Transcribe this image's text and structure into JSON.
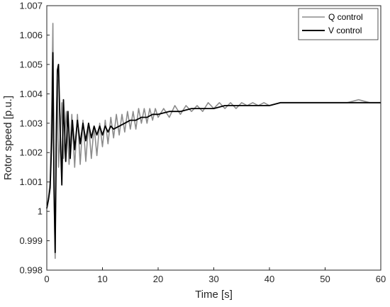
{
  "chart_data": {
    "type": "line",
    "title": "",
    "xlabel": "Time [s]",
    "ylabel": "Rotor speed [p.u.]",
    "xlim": [
      0,
      60
    ],
    "ylim": [
      0.998,
      1.007
    ],
    "xticks": [
      0,
      10,
      20,
      30,
      40,
      50,
      60
    ],
    "xtick_labels": [
      "0",
      "10",
      "20",
      "30",
      "40",
      "50",
      "60"
    ],
    "yticks": [
      0.998,
      0.999,
      1.0,
      1.001,
      1.002,
      1.003,
      1.004,
      1.005,
      1.006,
      1.007
    ],
    "ytick_labels": [
      "0.998",
      "0.999",
      "1",
      "1.001",
      "1.002",
      "1.003",
      "1.004",
      "1.005",
      "1.006",
      "1.007"
    ],
    "grid": false,
    "legend_position": "top-right",
    "series": [
      {
        "name": "Q control",
        "color": "#8c8c8c",
        "x": [
          0,
          0.3,
          0.6,
          0.9,
          1.1,
          1.3,
          1.5,
          1.7,
          1.9,
          2.1,
          2.4,
          2.7,
          3.0,
          3.5,
          4.0,
          4.5,
          5.0,
          5.5,
          6.0,
          6.5,
          7.0,
          7.5,
          8.0,
          8.5,
          9.0,
          9.5,
          10.0,
          10.5,
          11.0,
          11.5,
          12.0,
          12.5,
          13.0,
          13.5,
          14.0,
          14.5,
          15.0,
          15.5,
          16.0,
          16.5,
          17.0,
          17.5,
          18.0,
          18.5,
          19.0,
          19.5,
          20.0,
          21,
          22,
          23,
          24,
          25,
          26,
          27,
          28,
          29,
          30,
          31,
          32,
          33,
          34,
          35,
          36,
          37,
          38,
          39,
          40,
          42,
          44,
          46,
          48,
          50,
          52,
          54,
          56,
          58,
          60
        ],
        "y": [
          1.0001,
          1.0005,
          1.001,
          1.0038,
          1.0064,
          1.0005,
          0.9984,
          1.003,
          1.0045,
          1.0015,
          1.0025,
          1.0037,
          1.0018,
          1.0034,
          1.0016,
          1.0033,
          1.0015,
          1.0033,
          1.0016,
          1.0031,
          1.0017,
          1.003,
          1.0018,
          1.0029,
          1.0019,
          1.003,
          1.0022,
          1.0031,
          1.0023,
          1.0032,
          1.0025,
          1.0033,
          1.0026,
          1.0033,
          1.0027,
          1.0034,
          1.0028,
          1.0034,
          1.0028,
          1.0035,
          1.003,
          1.0035,
          1.003,
          1.0035,
          1.0031,
          1.0035,
          1.0032,
          1.0035,
          1.0032,
          1.0036,
          1.0033,
          1.0036,
          1.0034,
          1.0036,
          1.0034,
          1.0037,
          1.0035,
          1.0037,
          1.0035,
          1.0037,
          1.0035,
          1.0037,
          1.0036,
          1.0037,
          1.0036,
          1.0037,
          1.0036,
          1.0037,
          1.0037,
          1.0037,
          1.0037,
          1.0037,
          1.0037,
          1.0037,
          1.0038,
          1.0037,
          1.0037
        ]
      },
      {
        "name": "V control",
        "color": "#000000",
        "x": [
          0,
          0.3,
          0.6,
          0.9,
          1.1,
          1.3,
          1.5,
          1.7,
          1.9,
          2.1,
          2.4,
          2.7,
          3.0,
          3.4,
          3.8,
          4.2,
          4.6,
          5.0,
          5.5,
          6.0,
          6.5,
          7.0,
          7.5,
          8.0,
          8.5,
          9.0,
          9.5,
          10.0,
          10.5,
          11.0,
          11.5,
          12.0,
          13,
          14,
          15,
          16,
          17,
          18,
          19,
          20,
          22,
          24,
          26,
          28,
          30,
          32,
          34,
          36,
          38,
          40,
          42,
          45,
          48,
          51,
          54,
          57,
          60
        ],
        "y": [
          1.0001,
          1.0004,
          1.0008,
          1.0025,
          1.0054,
          1.0008,
          0.9986,
          1.0022,
          1.0048,
          1.005,
          1.0028,
          1.0009,
          1.0038,
          1.0017,
          1.0034,
          1.0018,
          1.0031,
          1.0021,
          1.0031,
          1.0023,
          1.003,
          1.0024,
          1.003,
          1.0025,
          1.0029,
          1.0026,
          1.0029,
          1.0026,
          1.0029,
          1.0027,
          1.0029,
          1.0028,
          1.0029,
          1.003,
          1.0031,
          1.0031,
          1.0032,
          1.0032,
          1.0033,
          1.0033,
          1.0034,
          1.0034,
          1.0035,
          1.0035,
          1.0035,
          1.0036,
          1.0036,
          1.0036,
          1.0036,
          1.0036,
          1.0037,
          1.0037,
          1.0037,
          1.0037,
          1.0037,
          1.0037,
          1.0037
        ]
      }
    ]
  }
}
